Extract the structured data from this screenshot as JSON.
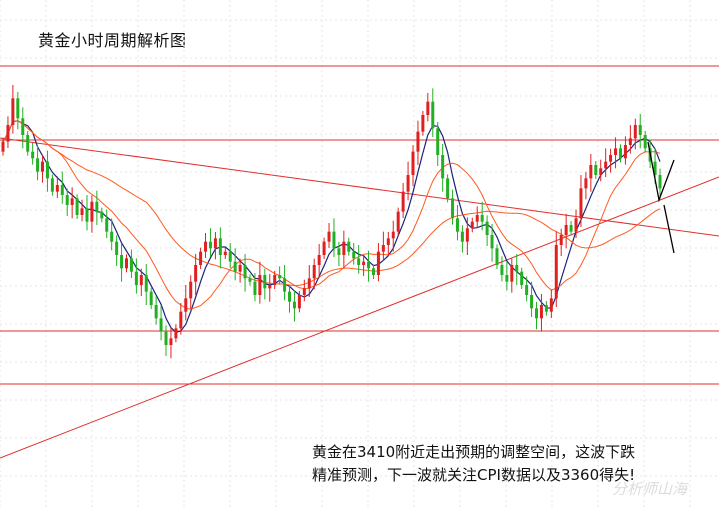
{
  "title": "黄金小时周期解析图",
  "annotation_line1": "黄金在3410附近走出预期的调整空间，这波下跌",
  "annotation_line2": "精准预测，下一波就关注CPI数据以及3360得失!",
  "watermark": "分析师山海",
  "colors": {
    "background": "#ffffff",
    "grid": "#e6e6e6",
    "candle_up": "#e02020",
    "candle_down": "#22b022",
    "ma_short": "#1a237e",
    "ma_long": "#ff5a1f",
    "level_line": "#e03030",
    "trend_line": "#e03030",
    "projection": "#000000"
  },
  "chart_data": {
    "type": "candlestick",
    "price_closes": [
      3398,
      3403,
      3411,
      3405,
      3400,
      3395,
      3393,
      3389,
      3392,
      3387,
      3383,
      3385,
      3382,
      3379,
      3381,
      3376,
      3378,
      3374,
      3380,
      3377,
      3375,
      3371,
      3368,
      3364,
      3360,
      3363,
      3359,
      3355,
      3358,
      3353,
      3349,
      3345,
      3341,
      3337,
      3339,
      3342,
      3347,
      3351,
      3356,
      3361,
      3365,
      3368,
      3366,
      3369,
      3364,
      3365,
      3362,
      3359,
      3361,
      3357,
      3356,
      3352,
      3358,
      3354,
      3355,
      3358,
      3357,
      3353,
      3350,
      3348,
      3352,
      3354,
      3357,
      3361,
      3364,
      3368,
      3371,
      3366,
      3364,
      3368,
      3365,
      3363,
      3361,
      3362,
      3360,
      3358,
      3365,
      3367,
      3369,
      3371,
      3377,
      3383,
      3388,
      3395,
      3401,
      3406,
      3410,
      3402,
      3394,
      3387,
      3381,
      3375,
      3371,
      3368,
      3372,
      3374,
      3376,
      3374,
      3370,
      3366,
      3361,
      3358,
      3356,
      3361,
      3359,
      3355,
      3352,
      3348,
      3345,
      3349,
      3347,
      3351,
      3367,
      3370,
      3373,
      3371,
      3375,
      3384,
      3387,
      3391,
      3388,
      3390,
      3392,
      3394,
      3396,
      3393,
      3397,
      3399,
      3403,
      3400,
      3396,
      3392,
      3388,
      3384
    ],
    "levels": [
      "upper resistance",
      "middle resistance",
      "lower support",
      "bottom support"
    ],
    "trendlines": [
      "descending resistance",
      "ascending support"
    ],
    "moving_averages": [
      "short MA",
      "mid MA",
      "long MA"
    ]
  }
}
